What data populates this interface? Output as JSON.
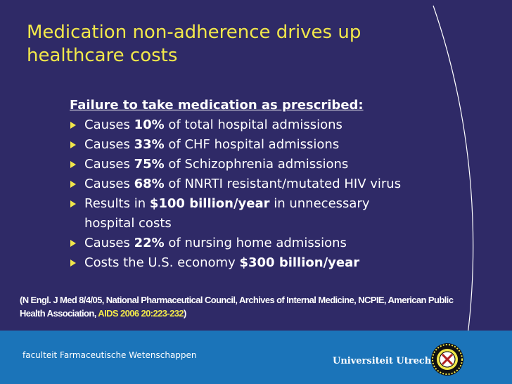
{
  "slide": {
    "title_line1": "Medication non-adherence drives up",
    "title_line2": "healthcare costs",
    "heading": "Failure to take medication as prescribed:",
    "bullets": [
      {
        "pre": "Causes ",
        "bold": "10%",
        "post": " of total hospital admissions"
      },
      {
        "pre": "Causes ",
        "bold": "33%",
        "post": " of CHF hospital admissions"
      },
      {
        "pre": "Causes ",
        "bold": "75%",
        "post": " of Schizophrenia admissions"
      },
      {
        "pre": "Causes ",
        "bold": "68%",
        "post": " of NNRTI resistant/mutated HIV virus"
      },
      {
        "pre": "Results in ",
        "bold": "$100 billion/year",
        "post": " in unnecessary hospital costs"
      },
      {
        "pre": "Causes ",
        "bold": "22%",
        "post": " of nursing home admissions"
      },
      {
        "pre": "Costs the U.S. economy ",
        "bold": "$300 billion/year",
        "post": ""
      }
    ],
    "citation_pre": "(N Engl. J Med 8/4/05, National Pharmaceutical Council, Archives of Internal Medicine, NCPIE, American Public Health Association, ",
    "citation_link": "AIDS 2006 20:223-232",
    "citation_post": ")"
  },
  "footer": {
    "faculty": "faculteit Farmaceutische Wetenschappen",
    "university": "Universiteit Utrecht"
  },
  "colors": {
    "background": "#2f2a67",
    "title": "#f2e84a",
    "footer": "#1b74b9",
    "bullet": "#f2e84a"
  },
  "icons": {
    "bullet": "triangle-bullet-icon",
    "seal": "university-seal-icon"
  }
}
